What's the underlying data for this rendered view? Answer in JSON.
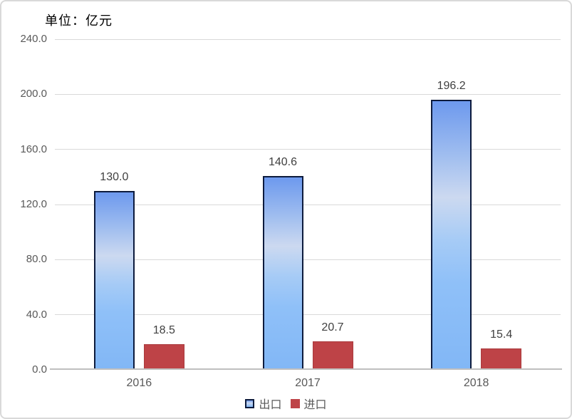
{
  "chart_data": {
    "type": "bar",
    "title": "单位：亿元",
    "categories": [
      "2016",
      "2017",
      "2018"
    ],
    "series": [
      {
        "key": "export",
        "name": "出口",
        "values": [
          130.0,
          140.6,
          196.2
        ],
        "labels": [
          "130.0",
          "140.6",
          "196.2"
        ]
      },
      {
        "key": "import",
        "name": "进口",
        "values": [
          18.5,
          20.7,
          15.4
        ],
        "labels": [
          "18.5",
          "20.7",
          "15.4"
        ]
      }
    ],
    "ylim": [
      0,
      240
    ],
    "ytick_step": 40,
    "ytick_values": [
      0,
      40,
      80,
      120,
      160,
      200,
      240
    ],
    "ytick_labels": [
      "0.0",
      "40.0",
      "80.0",
      "120.0",
      "160.0",
      "200.0",
      "240.0"
    ],
    "grid": true,
    "legend_position": "bottom",
    "data_labels_visible": true
  },
  "colors": {
    "export_top": "#6D99EE",
    "export_mid": "#CCD9F0",
    "export_low": "#8FC0F8",
    "export_bottom": "#82B7F6",
    "export_border": "#0D1B3D",
    "import_fill": "#BE4347",
    "import_border": "#AA3B3E",
    "gridline": "#D9D9D9",
    "axis_line": "#BFBFBF",
    "tick_text": "#595959",
    "data_label_text": "#404040",
    "title_text": "#000000",
    "chart_border": "#D9D9D9"
  }
}
